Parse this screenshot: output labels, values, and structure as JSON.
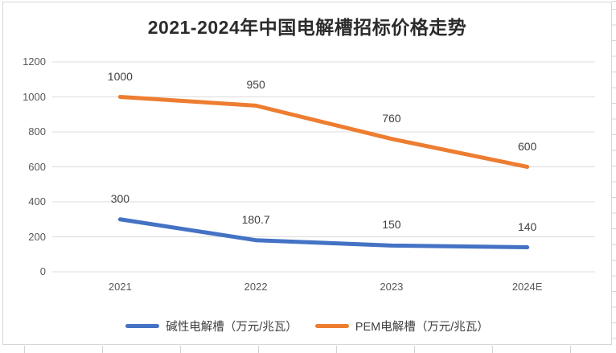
{
  "title": "2021-2024年中国电解槽招标价格走势",
  "chart_data": {
    "type": "line",
    "title": "2021-2024年中国电解槽招标价格走势",
    "categories": [
      "2021",
      "2022",
      "2023",
      "2024E"
    ],
    "series": [
      {
        "name": "碱性电解槽（万元/兆瓦）",
        "values": [
          300,
          180.7,
          150,
          140
        ],
        "labels": [
          "300",
          "180.7",
          "150",
          "140"
        ],
        "color": "#4472C4"
      },
      {
        "name": "PEM电解槽（万元/兆瓦）",
        "values": [
          1000,
          950,
          760,
          600
        ],
        "labels": [
          "1000",
          "950",
          "760",
          "600"
        ],
        "color": "#ED7D31"
      }
    ],
    "ylim": [
      0,
      1200
    ],
    "yticks": [
      0,
      200,
      400,
      600,
      800,
      1000,
      1200
    ],
    "grid": true,
    "legend_position": "bottom",
    "xlabel": "",
    "ylabel": ""
  },
  "colors": {
    "accent_blue": "#4472C4",
    "accent_orange": "#ED7D31",
    "grid": "#dcdcdc",
    "axis_text": "#595959",
    "data_label_text": "#404040",
    "title_text": "#2b2b2b",
    "chart_border": "#d6d6d6",
    "sheet_gridline": "#d4d4d4"
  }
}
